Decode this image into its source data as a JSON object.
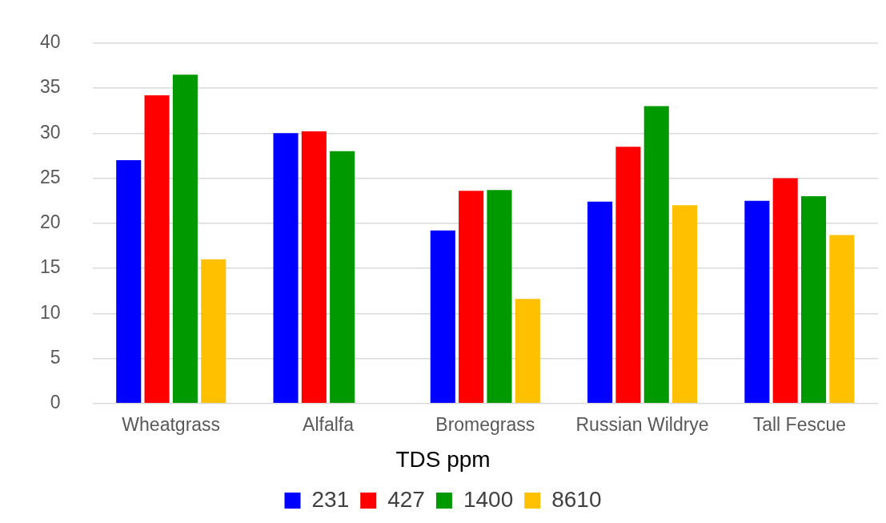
{
  "chart_data": {
    "type": "bar",
    "categories": [
      "Wheatgrass",
      "Alfalfa",
      "Bromegrass",
      "Russian Wildrye",
      "Tall Fescue"
    ],
    "legend_title": "TDS ppm",
    "series": [
      {
        "name": "231",
        "color": "#0000ff",
        "values": [
          27.0,
          30.0,
          19.2,
          22.4,
          22.5
        ]
      },
      {
        "name": "427",
        "color": "#ff0000",
        "values": [
          34.2,
          30.2,
          23.6,
          28.5,
          25.0
        ]
      },
      {
        "name": "1400",
        "color": "#009900",
        "values": [
          36.5,
          28.0,
          23.7,
          33.0,
          23.0
        ]
      },
      {
        "name": "8610",
        "color": "#ffc000",
        "values": [
          16.0,
          null,
          11.6,
          22.0,
          18.7
        ]
      }
    ],
    "ylim": [
      0,
      40
    ],
    "yticks": [
      0,
      5,
      10,
      15,
      20,
      25,
      30,
      35,
      40
    ],
    "grid": "y",
    "legend": "bottom"
  }
}
